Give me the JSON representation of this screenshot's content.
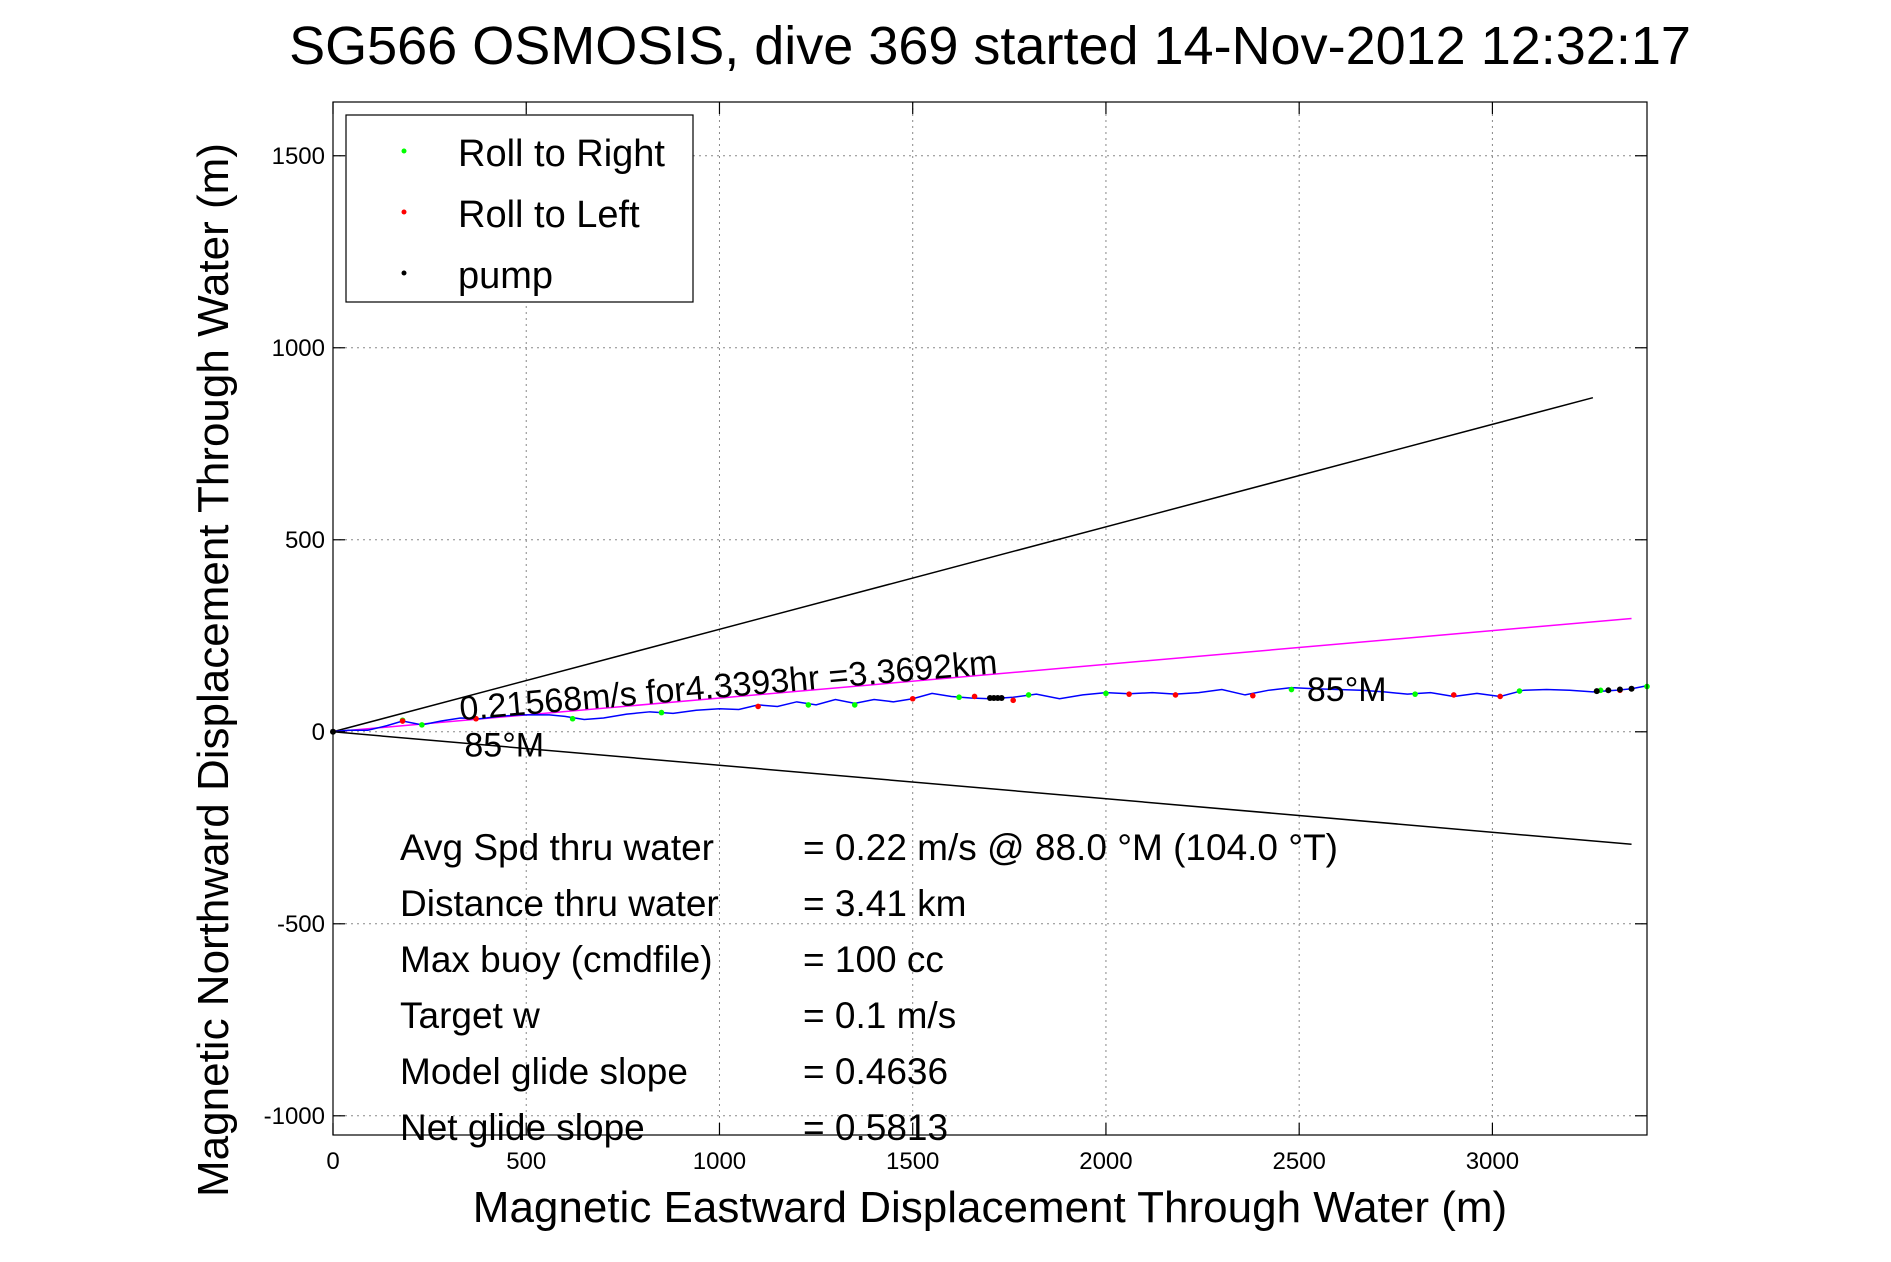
{
  "chart_data": {
    "type": "line",
    "title": "SG566 OSMOSIS, dive 369 started 14-Nov-2012 12:32:17",
    "xlabel": "Magnetic Eastward Displacement Through Water (m)",
    "ylabel": "Magnetic Northward Displacement Through Water (m)",
    "xlim": [
      0,
      3400
    ],
    "ylim": [
      -1050,
      1640
    ],
    "xticks": [
      0,
      500,
      1000,
      1500,
      2000,
      2500,
      3000
    ],
    "yticks": [
      -1000,
      -500,
      0,
      500,
      1000,
      1500
    ],
    "grid": true,
    "legend_position": "top-left",
    "legend": [
      {
        "label": "Roll to Right",
        "color": "#00ff00"
      },
      {
        "label": "Roll to Left",
        "color": "#ff0000"
      },
      {
        "label": "pump",
        "color": "#000000"
      }
    ],
    "reference_lines": [
      {
        "name": "heading-limit-upper",
        "color": "#000000",
        "points": [
          [
            0,
            0
          ],
          [
            3260,
            870
          ]
        ]
      },
      {
        "name": "heading-limit-lower",
        "color": "#000000",
        "points": [
          [
            0,
            0
          ],
          [
            3360,
            -293
          ]
        ]
      },
      {
        "name": "average-heading",
        "color": "#ff00ff",
        "points": [
          [
            0,
            0
          ],
          [
            3360,
            295
          ]
        ]
      }
    ],
    "track": {
      "color": "#0000ff",
      "x": [
        0,
        40,
        90,
        140,
        180,
        230,
        280,
        330,
        380,
        430,
        480,
        520,
        560,
        600,
        650,
        700,
        760,
        820,
        880,
        940,
        1000,
        1050,
        1100,
        1150,
        1200,
        1250,
        1300,
        1350,
        1400,
        1450,
        1500,
        1550,
        1600,
        1650,
        1700,
        1760,
        1820,
        1880,
        1940,
        2000,
        2060,
        2120,
        2180,
        2240,
        2300,
        2360,
        2420,
        2480,
        2540,
        2600,
        2660,
        2720,
        2780,
        2840,
        2900,
        2960,
        3020,
        3080,
        3140,
        3200,
        3260,
        3320,
        3360,
        3400
      ],
      "y": [
        0,
        4,
        4,
        16,
        28,
        18,
        28,
        36,
        34,
        40,
        44,
        44,
        44,
        40,
        32,
        36,
        46,
        52,
        48,
        56,
        60,
        58,
        70,
        66,
        78,
        70,
        84,
        74,
        84,
        78,
        86,
        100,
        92,
        88,
        86,
        90,
        98,
        86,
        96,
        102,
        99,
        102,
        98,
        102,
        110,
        96,
        108,
        115,
        112,
        110,
        108,
        104,
        98,
        102,
        92,
        100,
        92,
        108,
        110,
        108,
        104,
        108,
        112,
        120
      ]
    },
    "roll_right": {
      "x": [
        180,
        230,
        620,
        850,
        1230,
        1350,
        1620,
        1800,
        2000,
        2480,
        2800,
        3070,
        3280,
        3400
      ],
      "y": [
        30,
        18,
        34,
        50,
        70,
        70,
        90,
        96,
        100,
        110,
        98,
        106,
        108,
        118
      ]
    },
    "roll_left": {
      "x": [
        180,
        370,
        1100,
        1500,
        1660,
        1760,
        2060,
        2180,
        2380,
        2900,
        3020,
        3330
      ],
      "y": [
        28,
        34,
        66,
        86,
        92,
        82,
        98,
        96,
        94,
        96,
        92,
        108
      ]
    },
    "pump": {
      "x": [
        0,
        1700,
        1710,
        1720,
        1730,
        3270,
        3300,
        3330,
        3360
      ],
      "y": [
        0,
        88,
        88,
        88,
        88,
        106,
        108,
        110,
        112
      ]
    },
    "annotations": [
      {
        "name": "speed-annotation",
        "text": "0.21568m/s for4.3393hr =3.3692km",
        "x": 330,
        "y": 30,
        "rotation": -5
      },
      {
        "name": "heading-label-lower",
        "text": "85°M",
        "x": 340,
        "y": -65
      },
      {
        "name": "heading-label-upper",
        "text": "85°M",
        "x": 2520,
        "y": 80
      }
    ],
    "stats": [
      {
        "label": "Avg Spd thru water",
        "value": "=  0.22 m/s @  88.0 °M (104.0 °T)"
      },
      {
        "label": "Distance thru water",
        "value": "=  3.41 km"
      },
      {
        "label": "Max buoy (cmdfile)",
        "value": "= 100 cc"
      },
      {
        "label": "Target w",
        "value": "= 0.1 m/s"
      },
      {
        "label": "Model glide slope",
        "value": "= 0.4636"
      },
      {
        "label": "Net glide slope",
        "value": "= 0.5813"
      }
    ]
  }
}
